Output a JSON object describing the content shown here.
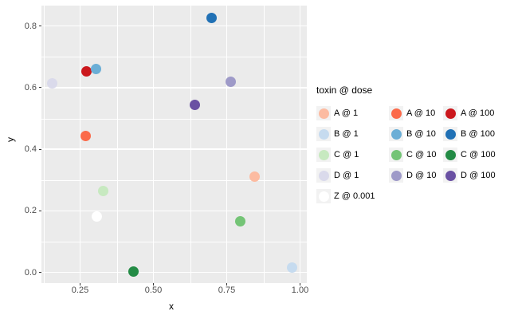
{
  "chart_data": {
    "type": "scatter",
    "title": "",
    "xlabel": "x",
    "ylabel": "y",
    "legend_title": "toxin @ dose",
    "legend_position": "right",
    "grid": true,
    "x_axis": {
      "ticks": [
        0.25,
        0.5,
        0.75,
        1.0
      ],
      "tick_labels": [
        "0.25",
        "0.50",
        "0.75",
        "1.00"
      ],
      "minor_ticks": [
        0.125,
        0.375,
        0.625,
        0.875
      ],
      "range": [
        0.118,
        1.023
      ]
    },
    "y_axis": {
      "ticks": [
        0.0,
        0.2,
        0.4,
        0.6,
        0.8
      ],
      "tick_labels": [
        "0.0",
        "0.2",
        "0.4",
        "0.6",
        "0.8"
      ],
      "minor_ticks": [
        0.1,
        0.3,
        0.5,
        0.7
      ],
      "range": [
        -0.034,
        0.866
      ]
    },
    "points": [
      {
        "toxin": "A",
        "dose": 1,
        "label": "A @ 1",
        "x": 0.845,
        "y": 0.312,
        "color": "#FCBBA1"
      },
      {
        "toxin": "A",
        "dose": 10,
        "label": "A @ 10",
        "x": 0.268,
        "y": 0.444,
        "color": "#FB6A4A"
      },
      {
        "toxin": "A",
        "dose": 100,
        "label": "A @ 100",
        "x": 0.271,
        "y": 0.653,
        "color": "#CB181D"
      },
      {
        "toxin": "B",
        "dose": 1,
        "label": "B @ 1",
        "x": 0.973,
        "y": 0.015,
        "color": "#C6DBEF"
      },
      {
        "toxin": "B",
        "dose": 10,
        "label": "B @ 10",
        "x": 0.303,
        "y": 0.661,
        "color": "#6BAED6"
      },
      {
        "toxin": "B",
        "dose": 100,
        "label": "B @ 100",
        "x": 0.699,
        "y": 0.827,
        "color": "#2171B5"
      },
      {
        "toxin": "C",
        "dose": 1,
        "label": "C @ 1",
        "x": 0.328,
        "y": 0.265,
        "color": "#C7E9C0"
      },
      {
        "toxin": "C",
        "dose": 10,
        "label": "C @ 10",
        "x": 0.797,
        "y": 0.166,
        "color": "#74C476"
      },
      {
        "toxin": "C",
        "dose": 100,
        "label": "C @ 100",
        "x": 0.433,
        "y": 0.002,
        "color": "#238B45"
      },
      {
        "toxin": "D",
        "dose": 1,
        "label": "D @ 1",
        "x": 0.154,
        "y": 0.613,
        "color": "#DADAEB"
      },
      {
        "toxin": "D",
        "dose": 10,
        "label": "D @ 10",
        "x": 0.763,
        "y": 0.619,
        "color": "#9E9AC8"
      },
      {
        "toxin": "D",
        "dose": 100,
        "label": "D @ 100",
        "x": 0.64,
        "y": 0.544,
        "color": "#6A51A3"
      },
      {
        "toxin": "Z",
        "dose": 0.001,
        "label": "Z @ 0.001",
        "x": 0.308,
        "y": 0.181,
        "color": "#FFFFFF"
      }
    ],
    "legend_columns": [
      [
        "A @ 1",
        "B @ 1",
        "C @ 1",
        "D @ 1",
        "Z @ 0.001"
      ],
      [
        "A @ 10",
        "B @ 10",
        "C @ 10",
        "D @ 10"
      ],
      [
        "A @ 100",
        "B @ 100",
        "C @ 100",
        "D @ 100"
      ]
    ],
    "colors": {
      "panel_bg": "#EBEBEB",
      "gridline": "#FFFFFF",
      "legend_key_bg": "#F2F2F2",
      "tick_label_text": "#4D4D4D",
      "axis_title_text": "#000000",
      "tick_mark": "#333333",
      "figure_bg": "#FFFFFF"
    }
  }
}
